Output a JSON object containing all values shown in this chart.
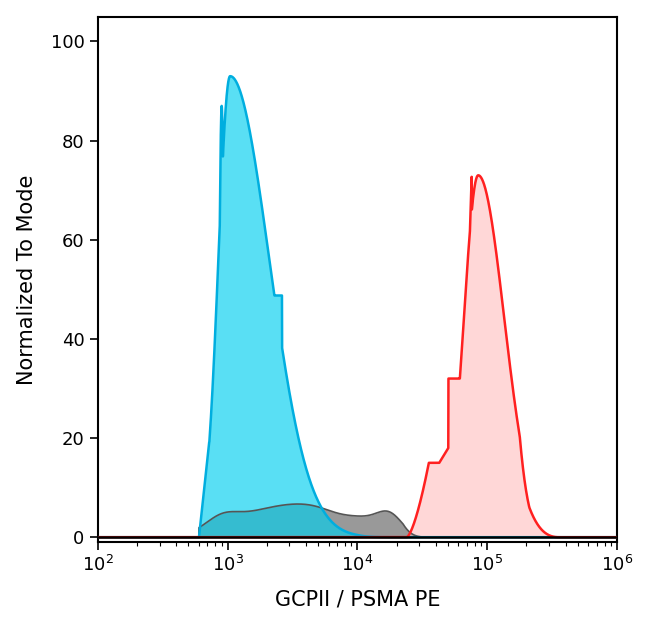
{
  "xlabel": "GCPII / PSMA PE",
  "ylabel": "Normalized To Mode",
  "ylim": [
    -1,
    105
  ],
  "yticks": [
    0,
    20,
    40,
    60,
    80,
    100
  ],
  "cyan_fill_color": "#00CFEF",
  "cyan_line_color": "#00AEDF",
  "red_fill_color": "#FFB0B0",
  "red_line_color": "#FF2020",
  "gray_fill_color": "#999999",
  "gray_line_color": "#555555",
  "background_color": "#FFFFFF",
  "figure_width": 6.5,
  "figure_height": 6.26,
  "dpi": 100
}
